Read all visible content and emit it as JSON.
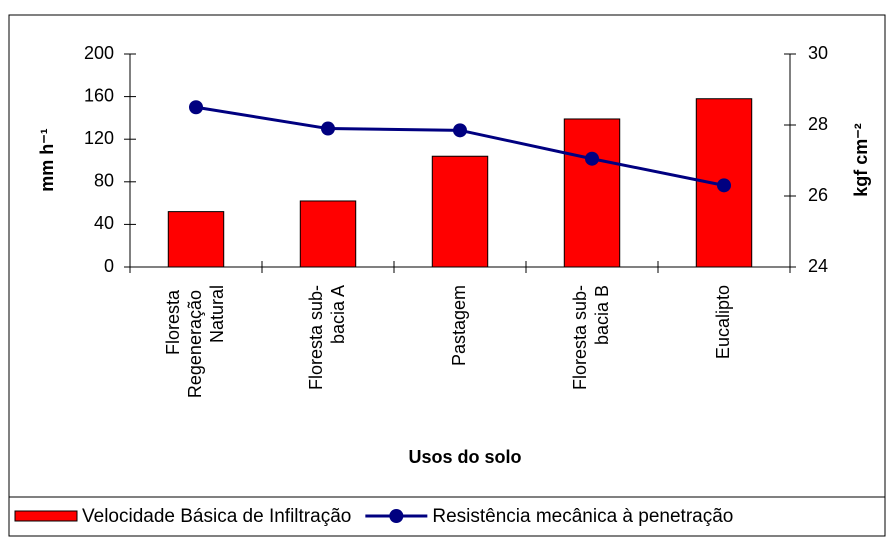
{
  "chart_data": {
    "type": "bar_line",
    "x_label": "Usos do solo",
    "y_label": "mm h⁻¹",
    "y2_label": "kgf cm⁻²",
    "categories": [
      "Floresta Regeneração Natural",
      "Floresta sub-bacia A",
      "Pastagem",
      "Floresta sub-bacia B",
      "Eucalipto"
    ],
    "series": [
      {
        "name": "Velocidade Básica de Infiltração",
        "type": "bar",
        "color": "#ff0000",
        "values": [
          52,
          62,
          104,
          139,
          158
        ]
      },
      {
        "name": "Resistência mecânica à penetração",
        "type": "line",
        "axis": "y2",
        "color": "#000080",
        "values": [
          28.5,
          27.9,
          27.85,
          27.05,
          26.3
        ]
      }
    ],
    "ylim": [
      0,
      200
    ],
    "yticks": [
      0,
      40,
      80,
      120,
      160,
      200
    ],
    "y2lim": [
      24,
      30
    ],
    "y2ticks": [
      24,
      26,
      28,
      30
    ],
    "grid": false,
    "legend": "bottom"
  }
}
